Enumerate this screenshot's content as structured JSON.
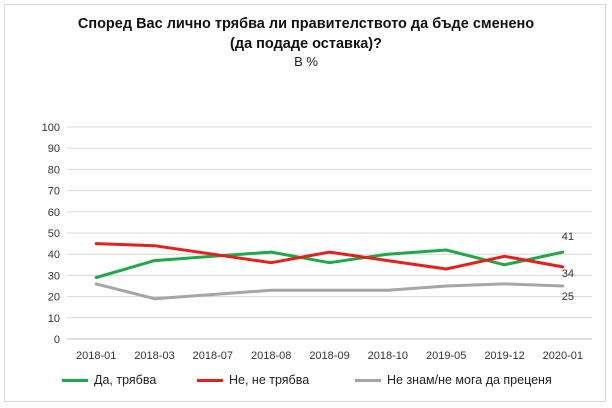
{
  "chart_data": {
    "type": "line",
    "title_line1": "Според Вас лично трябва ли правителството да бъде сменено",
    "title_line2": "(да подаде оставка)?",
    "subtitle": "В %",
    "categories": [
      "2018-01",
      "2018-03",
      "2018-07",
      "2018-08",
      "2018-09",
      "2018-10",
      "2019-05",
      "2019-12",
      "2020-01"
    ],
    "ylim": [
      0,
      100
    ],
    "yticks": [
      0,
      10,
      20,
      30,
      40,
      50,
      60,
      70,
      80,
      90,
      100
    ],
    "grid": true,
    "legend_position": "bottom",
    "series": [
      {
        "name": "Да, трябва",
        "color": "#1fa84a",
        "values": [
          29,
          37,
          39,
          41,
          36,
          40,
          42,
          35,
          41
        ],
        "last_label": "41"
      },
      {
        "name": "Не, не трябва",
        "color": "#e3211c",
        "values": [
          45,
          44,
          40,
          36,
          41,
          37,
          33,
          39,
          34
        ],
        "last_label": "34"
      },
      {
        "name": "Не знам/не мога да преценя",
        "color": "#a6a6a6",
        "values": [
          26,
          19,
          21,
          23,
          23,
          23,
          25,
          26,
          25
        ],
        "last_label": "25"
      }
    ]
  }
}
